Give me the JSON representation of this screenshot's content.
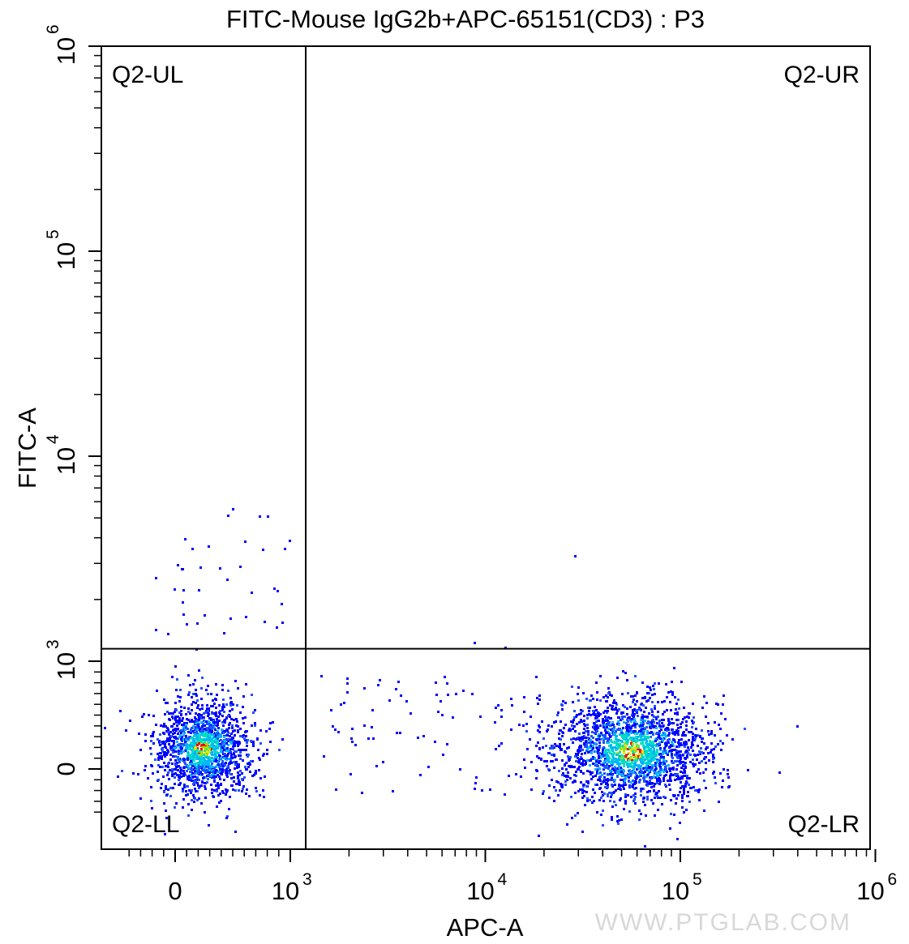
{
  "chart_data": {
    "type": "scatter",
    "title": "FITC-Mouse IgG2b+APC-65151(CD3) : P3",
    "xlabel": "APC-A",
    "ylabel": "FITC-A",
    "x_scale": "biexponential",
    "y_scale": "biexponential",
    "xlim": [
      -400,
      1000000
    ],
    "ylim": [
      -400,
      1000000
    ],
    "x_ticks": [
      {
        "value": 0,
        "base": "0",
        "exp": ""
      },
      {
        "value": 1000,
        "base": "10",
        "exp": "3"
      },
      {
        "value": 10000,
        "base": "10",
        "exp": "4"
      },
      {
        "value": 100000,
        "base": "10",
        "exp": "5"
      },
      {
        "value": 1000000,
        "base": "10",
        "exp": "6"
      }
    ],
    "y_ticks": [
      {
        "value": 0,
        "base": "0",
        "exp": ""
      },
      {
        "value": 1000,
        "base": "10",
        "exp": "3"
      },
      {
        "value": 10000,
        "base": "10",
        "exp": "4"
      },
      {
        "value": 100000,
        "base": "10",
        "exp": "5"
      },
      {
        "value": 1000000,
        "base": "10",
        "exp": "6"
      }
    ],
    "gate": {
      "x": 1200,
      "y": 1150
    },
    "quadrants": [
      {
        "name": "Q2-UL",
        "position": "top-left"
      },
      {
        "name": "Q2-UR",
        "position": "top-right"
      },
      {
        "name": "Q2-LL",
        "position": "bottom-left"
      },
      {
        "name": "Q2-LR",
        "position": "bottom-right"
      }
    ],
    "populations": [
      {
        "label": "",
        "center_x": 230,
        "center_y": 200,
        "quadrant": "Q2-LL",
        "color": "density"
      },
      {
        "label": "",
        "center_x": 55000,
        "center_y": 180,
        "quadrant": "Q2-LR",
        "color": "density"
      }
    ],
    "density_colors": [
      "#0000ff",
      "#2050ff",
      "#00b4ff",
      "#00e0c0",
      "#a0e000",
      "#f0e000",
      "#ff0000"
    ],
    "grid": false,
    "legend": "none"
  },
  "watermark": "WWW.PTGLAB.COM"
}
